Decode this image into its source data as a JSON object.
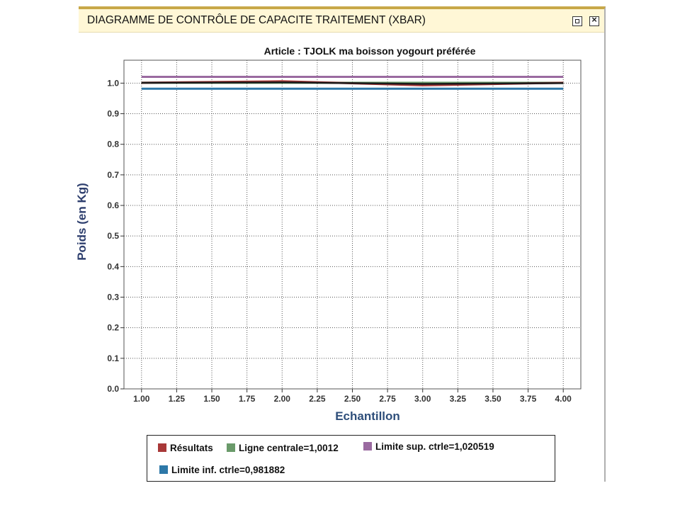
{
  "window": {
    "title": "DIAGRAMME DE CONTRÔLE DE CAPACITE TRAITEMENT (XBAR)"
  },
  "chart_data": {
    "type": "line",
    "title": "Article  : TJOLK ma boisson yogourt préférée",
    "xlabel": "Echantillon",
    "ylabel": "Poids (en Kg)",
    "xlim": [
      1.0,
      4.0
    ],
    "ylim": [
      0.0,
      1.0
    ],
    "x_ticks": [
      "1.00",
      "1.25",
      "1.50",
      "1.75",
      "2.00",
      "2.25",
      "2.50",
      "2.75",
      "3.00",
      "3.25",
      "3.50",
      "3.75",
      "4.00"
    ],
    "y_ticks": [
      "0.0",
      "0.1",
      "0.2",
      "0.3",
      "0.4",
      "0.5",
      "0.6",
      "0.7",
      "0.8",
      "0.9",
      "1.0"
    ],
    "grid": true,
    "legend_position": "bottom",
    "series": [
      {
        "name": "Résultats",
        "color": "#a83838",
        "x": [
          1,
          2,
          3,
          4
        ],
        "values": [
          1.0012,
          1.006,
          0.993,
          1.0012
        ]
      },
      {
        "name": "Ligne centrale=1,0012",
        "color": "#6a9a6a",
        "x": [
          1,
          4
        ],
        "values": [
          1.0012,
          1.0012
        ]
      },
      {
        "name": "Limite sup. ctrle=1,020519",
        "color": "#9a6aa0",
        "x": [
          1,
          4
        ],
        "values": [
          1.020519,
          1.020519
        ]
      },
      {
        "name": "Limite inf. ctrle=0,981882",
        "color": "#2d78a8",
        "x": [
          1,
          4
        ],
        "values": [
          0.981882,
          0.981882
        ]
      }
    ],
    "observation_series": {
      "color": "#1a1a1a",
      "x": [
        1,
        2,
        3,
        4
      ],
      "values": [
        1.0012,
        1.0025,
        0.9975,
        1.0
      ]
    }
  }
}
